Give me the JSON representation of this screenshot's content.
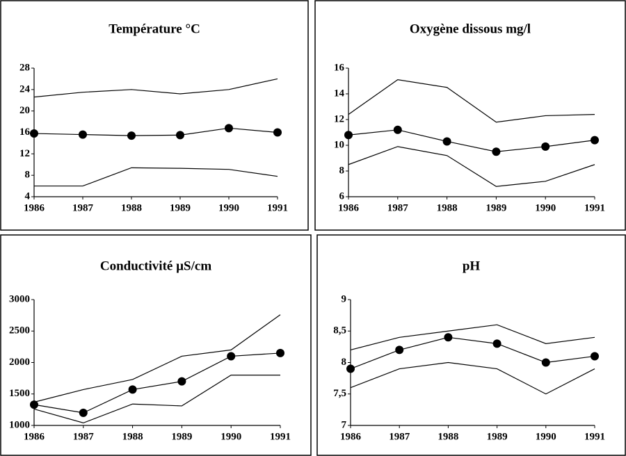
{
  "chart_data": [
    {
      "type": "line",
      "title": "Température °C",
      "x": [
        1986,
        1987,
        1988,
        1989,
        1990,
        1991
      ],
      "xlim": [
        1986,
        1991
      ],
      "xticks": [
        1986,
        1987,
        1988,
        1989,
        1990,
        1991
      ],
      "ylim": [
        4,
        28
      ],
      "yticks": [
        4,
        8,
        12,
        16,
        20,
        24,
        28
      ],
      "series": [
        {
          "color": "#000000",
          "values": [
            22.6,
            23.5,
            24,
            23.2,
            24,
            26
          ]
        },
        {
          "color": "#000000",
          "marker": "circle",
          "values": [
            15.8,
            15.6,
            15.4,
            15.5,
            16.8,
            16
          ]
        },
        {
          "color": "#000000",
          "values": [
            6,
            6,
            9.4,
            9.3,
            9.1,
            7.8
          ]
        }
      ]
    },
    {
      "type": "line",
      "title": "Oxygène dissous mg/l",
      "x": [
        1986,
        1987,
        1988,
        1989,
        1990,
        1991
      ],
      "xlim": [
        1986,
        1991
      ],
      "xticks": [
        1986,
        1987,
        1988,
        1989,
        1990,
        1991
      ],
      "ylim": [
        6,
        16
      ],
      "yticks": [
        6,
        8,
        10,
        12,
        14,
        16
      ],
      "series": [
        {
          "color": "#000000",
          "values": [
            12.4,
            15.1,
            14.5,
            11.8,
            12.3,
            12.4
          ]
        },
        {
          "color": "#000000",
          "marker": "circle",
          "values": [
            10.8,
            11.2,
            10.3,
            9.5,
            9.9,
            10.4
          ]
        },
        {
          "color": "#000000",
          "values": [
            8.5,
            9.9,
            9.2,
            6.8,
            7.2,
            8.5
          ]
        }
      ]
    },
    {
      "type": "line",
      "title": "Conductivité µS/cm",
      "x": [
        1986,
        1987,
        1988,
        1989,
        1990,
        1991
      ],
      "xlim": [
        1986,
        1991
      ],
      "xticks": [
        1986,
        1987,
        1988,
        1989,
        1990,
        1991
      ],
      "ylim": [
        1000,
        3000
      ],
      "yticks": [
        1000,
        1500,
        2000,
        2500,
        3000
      ],
      "series": [
        {
          "color": "#000000",
          "values": [
            1370,
            1570,
            1730,
            2100,
            2200,
            2760
          ]
        },
        {
          "color": "#000000",
          "marker": "circle",
          "values": [
            1330,
            1200,
            1570,
            1700,
            2100,
            2150
          ]
        },
        {
          "color": "#000000",
          "values": [
            1260,
            1040,
            1340,
            1310,
            1800,
            1800
          ]
        }
      ]
    },
    {
      "type": "line",
      "title": "pH",
      "x": [
        1986,
        1987,
        1988,
        1989,
        1990,
        1991
      ],
      "xlim": [
        1986,
        1991
      ],
      "xticks": [
        1986,
        1987,
        1988,
        1989,
        1990,
        1991
      ],
      "ylim": [
        7,
        9
      ],
      "yticks": [
        7,
        {
          "value": 7.5,
          "label": "7,5"
        },
        8,
        {
          "value": 8.5,
          "label": "8,5"
        },
        9
      ],
      "series": [
        {
          "color": "#000000",
          "values": [
            8.2,
            8.4,
            8.5,
            8.6,
            8.3,
            8.4
          ]
        },
        {
          "color": "#000000",
          "marker": "circle",
          "values": [
            7.9,
            8.2,
            8.4,
            8.3,
            8.0,
            8.1
          ]
        },
        {
          "color": "#000000",
          "values": [
            7.6,
            7.9,
            8.0,
            7.9,
            7.5,
            7.9
          ]
        }
      ]
    }
  ]
}
